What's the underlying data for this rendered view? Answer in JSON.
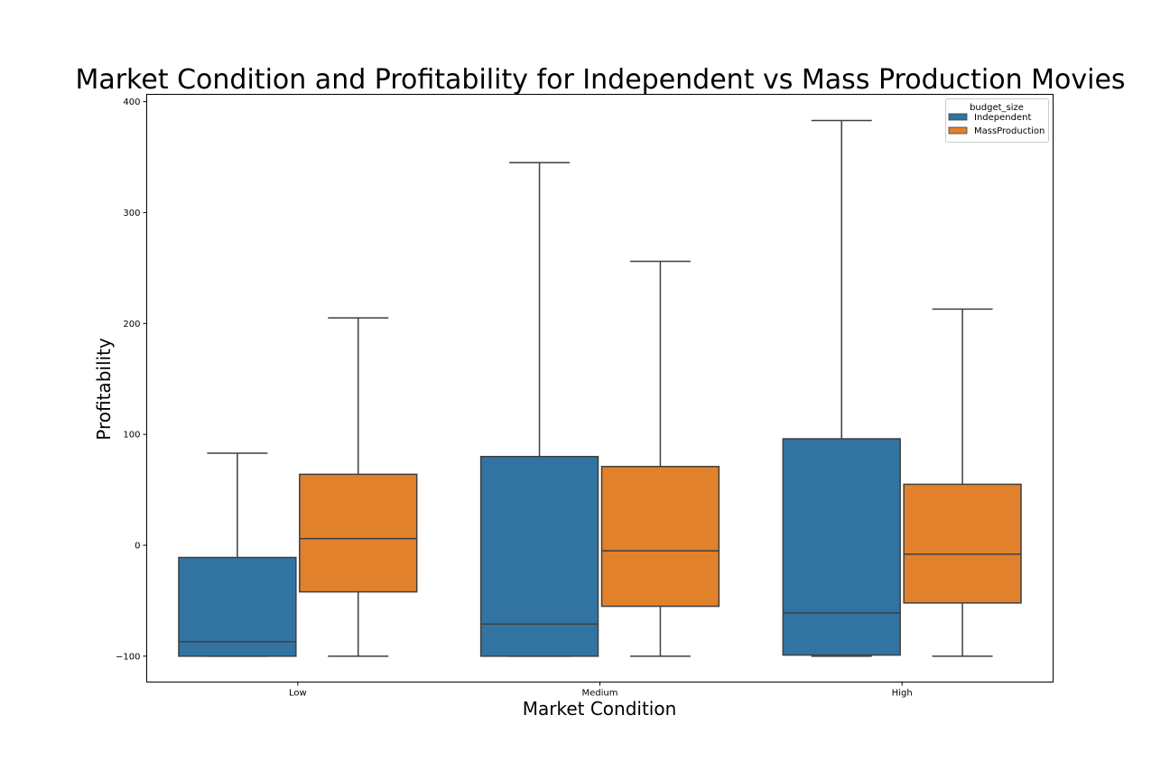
{
  "chart_data": {
    "type": "box",
    "title": "Market Condition and Profitability for Independent vs Mass Production Movies",
    "xlabel": "Market Condition",
    "ylabel": "Profitability",
    "categories": [
      "Low",
      "Medium",
      "High"
    ],
    "ylim": [
      -125,
      410
    ],
    "yticks": [
      -100,
      0,
      100,
      200,
      300,
      400
    ],
    "ytick_labels": [
      "−100",
      "0",
      "100",
      "200",
      "300",
      "400"
    ],
    "grid": false,
    "legend": {
      "title": "budget_size",
      "placement": "top-right"
    },
    "series": [
      {
        "name": "Independent",
        "color": "#3274a1",
        "boxes": [
          {
            "whisker_low": -100,
            "q1": -100,
            "median": -87,
            "q3": -11,
            "whisker_high": 83
          },
          {
            "whisker_low": -100,
            "q1": -100,
            "median": -71,
            "q3": 80,
            "whisker_high": 345
          },
          {
            "whisker_low": -100,
            "q1": -99,
            "median": -61,
            "q3": 96,
            "whisker_high": 383
          }
        ]
      },
      {
        "name": "MassProduction",
        "color": "#e1812c",
        "boxes": [
          {
            "whisker_low": -100,
            "q1": -42,
            "median": 6,
            "q3": 64,
            "whisker_high": 205
          },
          {
            "whisker_low": -100,
            "q1": -55,
            "median": -5,
            "q3": 71,
            "whisker_high": 256
          },
          {
            "whisker_low": -100,
            "q1": -52,
            "median": -8,
            "q3": 55,
            "whisker_high": 213
          }
        ]
      }
    ]
  }
}
